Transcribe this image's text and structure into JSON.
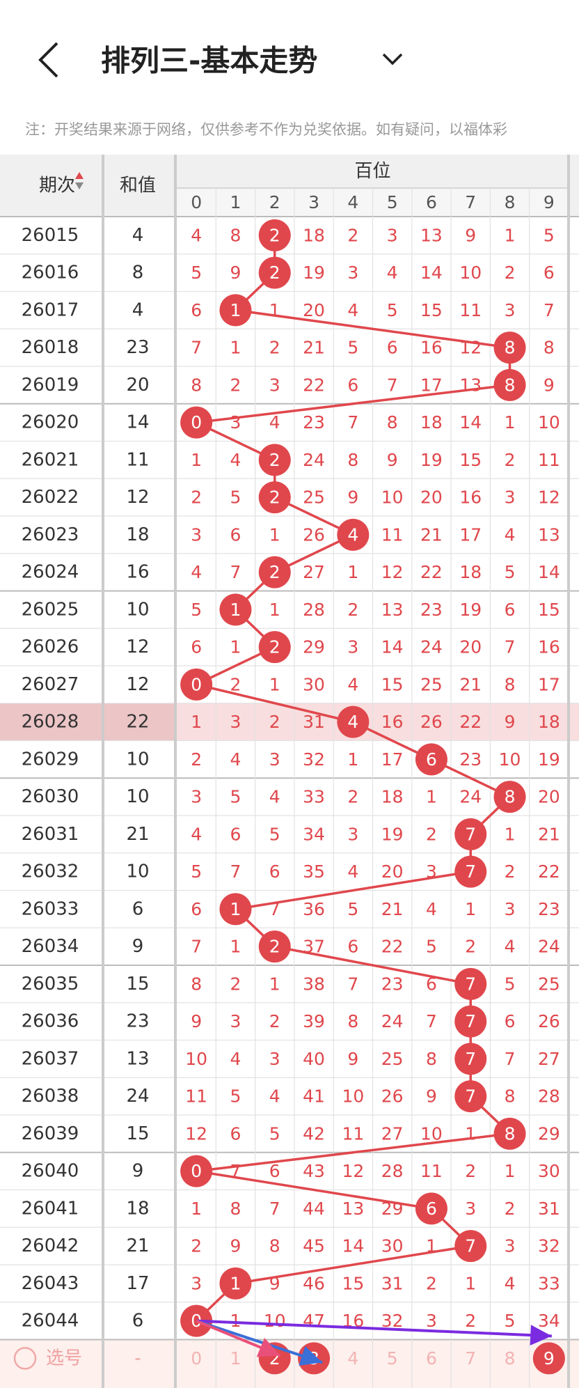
{
  "header": {
    "title": "排列三-基本走势",
    "note": "注：开奖结果来源于网络，仅供参考不作为兑奖依据。如有疑问，以福体彩"
  },
  "table": {
    "columns": {
      "period": "期次",
      "sum": "和值",
      "group": "百位",
      "digits": [
        "0",
        "1",
        "2",
        "3",
        "4",
        "5",
        "6",
        "7",
        "8",
        "9"
      ]
    },
    "highlight_index": 13,
    "rows": [
      {
        "period": "26015",
        "sum": 4,
        "hit": 2,
        "cells": [
          4,
          8,
          2,
          18,
          2,
          3,
          13,
          9,
          1,
          5
        ]
      },
      {
        "period": "26016",
        "sum": 8,
        "hit": 2,
        "cells": [
          5,
          9,
          2,
          19,
          3,
          4,
          14,
          10,
          2,
          6
        ]
      },
      {
        "period": "26017",
        "sum": 4,
        "hit": 1,
        "cells": [
          6,
          1,
          1,
          20,
          4,
          5,
          15,
          11,
          3,
          7
        ]
      },
      {
        "period": "26018",
        "sum": 23,
        "hit": 8,
        "cells": [
          7,
          1,
          2,
          21,
          5,
          6,
          16,
          12,
          8,
          8
        ]
      },
      {
        "period": "26019",
        "sum": 20,
        "hit": 8,
        "cells": [
          8,
          2,
          3,
          22,
          6,
          7,
          17,
          13,
          8,
          9
        ]
      },
      {
        "period": "26020",
        "sum": 14,
        "hit": 0,
        "cells": [
          0,
          3,
          4,
          23,
          7,
          8,
          18,
          14,
          1,
          10
        ]
      },
      {
        "period": "26021",
        "sum": 11,
        "hit": 2,
        "cells": [
          1,
          4,
          2,
          24,
          8,
          9,
          19,
          15,
          2,
          11
        ]
      },
      {
        "period": "26022",
        "sum": 12,
        "hit": 2,
        "cells": [
          2,
          5,
          2,
          25,
          9,
          10,
          20,
          16,
          3,
          12
        ]
      },
      {
        "period": "26023",
        "sum": 18,
        "hit": 4,
        "cells": [
          3,
          6,
          1,
          26,
          4,
          11,
          21,
          17,
          4,
          13
        ]
      },
      {
        "period": "26024",
        "sum": 16,
        "hit": 2,
        "cells": [
          4,
          7,
          2,
          27,
          1,
          12,
          22,
          18,
          5,
          14
        ]
      },
      {
        "period": "26025",
        "sum": 10,
        "hit": 1,
        "cells": [
          5,
          1,
          1,
          28,
          2,
          13,
          23,
          19,
          6,
          15
        ]
      },
      {
        "period": "26026",
        "sum": 12,
        "hit": 2,
        "cells": [
          6,
          1,
          2,
          29,
          3,
          14,
          24,
          20,
          7,
          16
        ]
      },
      {
        "period": "26027",
        "sum": 12,
        "hit": 0,
        "cells": [
          0,
          2,
          1,
          30,
          4,
          15,
          25,
          21,
          8,
          17
        ]
      },
      {
        "period": "26028",
        "sum": 22,
        "hit": 4,
        "cells": [
          1,
          3,
          2,
          31,
          4,
          16,
          26,
          22,
          9,
          18
        ]
      },
      {
        "period": "26029",
        "sum": 10,
        "hit": 6,
        "cells": [
          2,
          4,
          3,
          32,
          1,
          17,
          6,
          23,
          10,
          19
        ]
      },
      {
        "period": "26030",
        "sum": 10,
        "hit": 8,
        "cells": [
          3,
          5,
          4,
          33,
          2,
          18,
          1,
          24,
          8,
          20
        ]
      },
      {
        "period": "26031",
        "sum": 21,
        "hit": 7,
        "cells": [
          4,
          6,
          5,
          34,
          3,
          19,
          2,
          7,
          1,
          21
        ]
      },
      {
        "period": "26032",
        "sum": 10,
        "hit": 7,
        "cells": [
          5,
          7,
          6,
          35,
          4,
          20,
          3,
          7,
          2,
          22
        ]
      },
      {
        "period": "26033",
        "sum": 6,
        "hit": 1,
        "cells": [
          6,
          1,
          7,
          36,
          5,
          21,
          4,
          1,
          3,
          23
        ]
      },
      {
        "period": "26034",
        "sum": 9,
        "hit": 2,
        "cells": [
          7,
          1,
          2,
          37,
          6,
          22,
          5,
          2,
          4,
          24
        ]
      },
      {
        "period": "26035",
        "sum": 15,
        "hit": 7,
        "cells": [
          8,
          2,
          1,
          38,
          7,
          23,
          6,
          7,
          5,
          25
        ]
      },
      {
        "period": "26036",
        "sum": 23,
        "hit": 7,
        "cells": [
          9,
          3,
          2,
          39,
          8,
          24,
          7,
          7,
          6,
          26
        ]
      },
      {
        "period": "26037",
        "sum": 13,
        "hit": 7,
        "cells": [
          10,
          4,
          3,
          40,
          9,
          25,
          8,
          7,
          7,
          27
        ]
      },
      {
        "period": "26038",
        "sum": 24,
        "hit": 7,
        "cells": [
          11,
          5,
          4,
          41,
          10,
          26,
          9,
          7,
          8,
          28
        ]
      },
      {
        "period": "26039",
        "sum": 15,
        "hit": 8,
        "cells": [
          12,
          6,
          5,
          42,
          11,
          27,
          10,
          1,
          8,
          29
        ]
      },
      {
        "period": "26040",
        "sum": 9,
        "hit": 0,
        "cells": [
          0,
          7,
          6,
          43,
          12,
          28,
          11,
          2,
          1,
          30
        ]
      },
      {
        "period": "26041",
        "sum": 18,
        "hit": 6,
        "cells": [
          1,
          8,
          7,
          44,
          13,
          29,
          6,
          3,
          2,
          31
        ]
      },
      {
        "period": "26042",
        "sum": 21,
        "hit": 7,
        "cells": [
          2,
          9,
          8,
          45,
          14,
          30,
          1,
          7,
          3,
          32
        ]
      },
      {
        "period": "26043",
        "sum": 17,
        "hit": 1,
        "cells": [
          3,
          1,
          9,
          46,
          15,
          31,
          2,
          1,
          4,
          33
        ]
      },
      {
        "period": "26044",
        "sum": 6,
        "hit": 0,
        "cells": [
          0,
          1,
          10,
          47,
          16,
          32,
          3,
          2,
          5,
          34
        ]
      }
    ],
    "select": {
      "label": "选号",
      "sum": "-",
      "picked": [
        2,
        3,
        9
      ]
    }
  }
}
